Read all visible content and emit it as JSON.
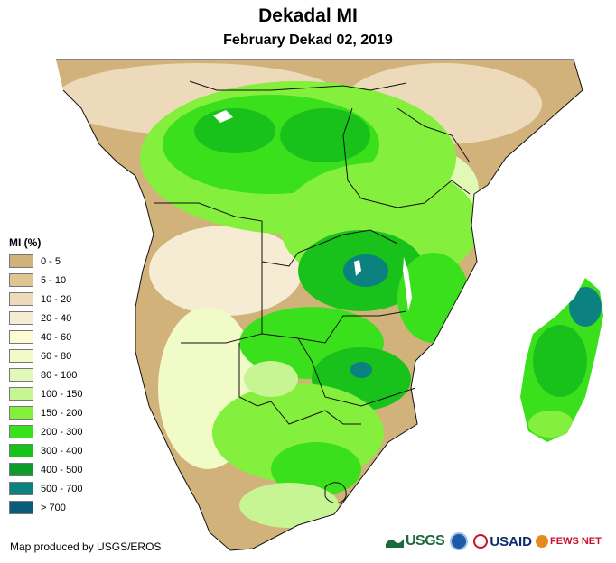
{
  "map": {
    "title": "Dekadal MI",
    "subtitle": "February Dekad 02, 2019",
    "region": "Southern and Central Africa with Madagascar"
  },
  "legend": {
    "title": "MI (%)",
    "items": [
      {
        "label": "0 - 5",
        "color": "#d2b27b"
      },
      {
        "label": "5 - 10",
        "color": "#e0c592"
      },
      {
        "label": "10 - 20",
        "color": "#ecdabb"
      },
      {
        "label": "20 - 40",
        "color": "#f6ecd4"
      },
      {
        "label": "40 - 60",
        "color": "#fdfbd3"
      },
      {
        "label": "60 - 80",
        "color": "#f1fbc7"
      },
      {
        "label": "80 - 100",
        "color": "#e2f8b6"
      },
      {
        "label": "100 - 150",
        "color": "#c8f593"
      },
      {
        "label": "150 - 200",
        "color": "#84ef3c"
      },
      {
        "label": "200 - 300",
        "color": "#3be01c"
      },
      {
        "label": "300 - 400",
        "color": "#18c21a"
      },
      {
        "label": "400 - 500",
        "color": "#0e9b2c"
      },
      {
        "label": "500 - 700",
        "color": "#0b8180"
      },
      {
        "label": "> 700",
        "color": "#0b5b7a"
      }
    ]
  },
  "credit": "Map produced by USGS/EROS",
  "logos": {
    "usgs": "USGS",
    "usgs_icon": "usgs-wave-icon",
    "noaa_icon": "noaa-seal-icon",
    "usaid": "USAID",
    "usaid_icon": "usaid-seal-icon",
    "fews": "FEWS NET",
    "fews_icon": "fews-globe-icon"
  }
}
